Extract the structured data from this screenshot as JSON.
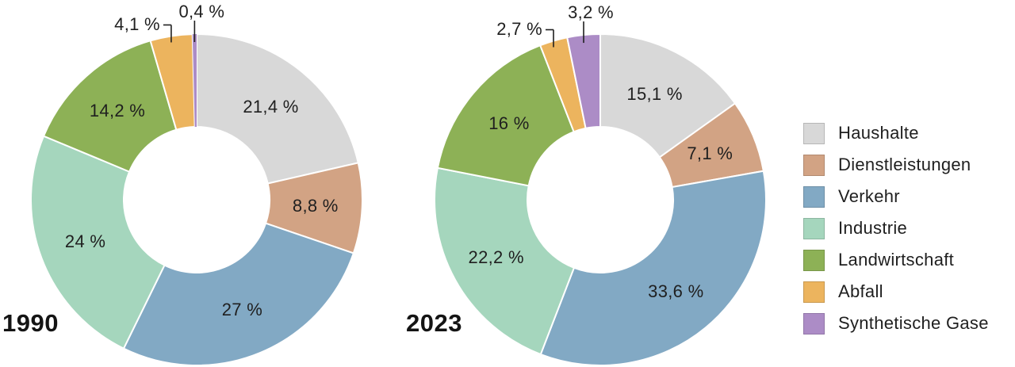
{
  "chart_data": [
    {
      "type": "pie",
      "subtype": "donut",
      "title": "1990",
      "categories": [
        "Haushalte",
        "Dienstleistungen",
        "Verkehr",
        "Industrie",
        "Landwirtschaft",
        "Abfall",
        "Synthetische Gase"
      ],
      "values": [
        21.4,
        8.8,
        27,
        24,
        14.2,
        4.1,
        0.4
      ],
      "display_values": [
        "21,4 %",
        "8,8 %",
        "27 %",
        "24 %",
        "14,2 %",
        "4,1 %",
        "0,4 %"
      ],
      "colors": [
        "#d8d8d8",
        "#d2a384",
        "#82a9c4",
        "#a5d6bd",
        "#8db156",
        "#ecb45e",
        "#ac8cc6"
      ],
      "unit": "%",
      "start_angle": 0,
      "direction": "clockwise",
      "legend_position": "right"
    },
    {
      "type": "pie",
      "subtype": "donut",
      "title": "2023",
      "categories": [
        "Haushalte",
        "Dienstleistungen",
        "Verkehr",
        "Industrie",
        "Landwirtschaft",
        "Abfall",
        "Synthetische Gase"
      ],
      "values": [
        15.1,
        7.1,
        33.6,
        22.2,
        16,
        2.7,
        3.2
      ],
      "display_values": [
        "15,1 %",
        "7,1 %",
        "33,6 %",
        "22,2 %",
        "16 %",
        "2,7 %",
        "3,2 %"
      ],
      "colors": [
        "#d8d8d8",
        "#d2a384",
        "#82a9c4",
        "#a5d6bd",
        "#8db156",
        "#ecb45e",
        "#ac8cc6"
      ],
      "unit": "%",
      "start_angle": 0,
      "direction": "clockwise",
      "legend_position": "right"
    }
  ],
  "legend": {
    "items": [
      {
        "label": "Haushalte",
        "color": "#d8d8d8"
      },
      {
        "label": "Dienstleistungen",
        "color": "#d2a384"
      },
      {
        "label": "Verkehr",
        "color": "#82a9c4"
      },
      {
        "label": "Industrie",
        "color": "#a5d6bd"
      },
      {
        "label": "Landwirtschaft",
        "color": "#8db156"
      },
      {
        "label": "Abfall",
        "color": "#ecb45e"
      },
      {
        "label": "Synthetische Gase",
        "color": "#ac8cc6"
      }
    ]
  },
  "style": {
    "text_color": "#1f1f1f",
    "separator_color": "#ffffff",
    "leader_line_color": "#1f1f1f"
  }
}
